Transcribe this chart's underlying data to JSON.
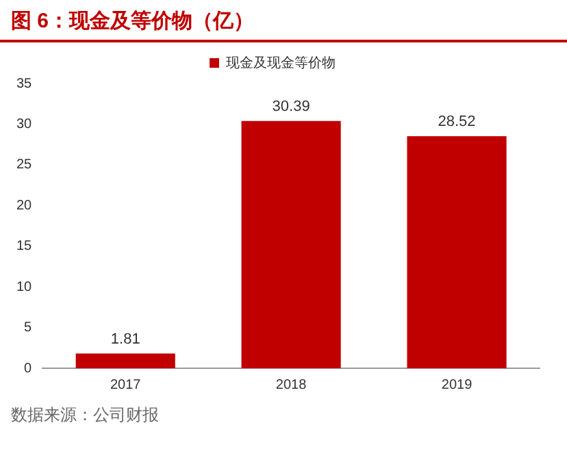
{
  "chart_data": {
    "type": "bar",
    "title": "图 6：现金及等价物（亿）",
    "categories": [
      "2017",
      "2018",
      "2019"
    ],
    "series": [
      {
        "name": "现金及现金等价物",
        "color": "#c00000",
        "values": [
          1.81,
          30.39,
          28.52
        ]
      }
    ],
    "ylim": [
      0,
      35
    ],
    "yticks": [
      0,
      5,
      10,
      15,
      20,
      25,
      30,
      35
    ],
    "grid": false,
    "legend": "top",
    "data_labels": true,
    "annotations": [
      "数据来源：公司财报"
    ]
  }
}
